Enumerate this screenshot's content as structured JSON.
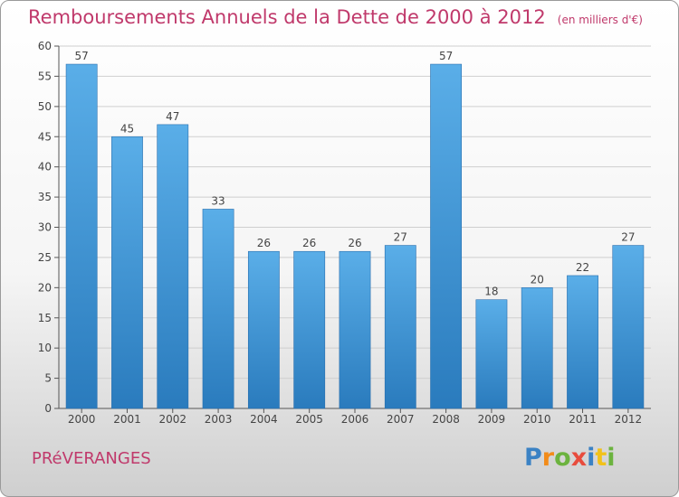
{
  "chart_data": {
    "type": "bar",
    "title": "Remboursements Annuels de la Dette de 2000 à 2012",
    "subtitle": "(en milliers d'€)",
    "categories": [
      "2000",
      "2001",
      "2002",
      "2003",
      "2004",
      "2005",
      "2006",
      "2007",
      "2008",
      "2009",
      "2010",
      "2011",
      "2012"
    ],
    "values": [
      57,
      45,
      47,
      33,
      26,
      26,
      26,
      27,
      57,
      18,
      20,
      22,
      27
    ],
    "ylim": [
      0,
      60
    ],
    "yticks": [
      0,
      5,
      10,
      15,
      20,
      25,
      30,
      35,
      40,
      45,
      50,
      55,
      60
    ],
    "grid": true,
    "legend": "none",
    "colors": {
      "bar_top": "#5aaee8",
      "bar_bottom": "#2a7bbd",
      "grid": "#cfcfcf",
      "title": "#c0396b"
    }
  },
  "footer": {
    "commune": "PRéVERANGES",
    "logo_letters": [
      "P",
      "r",
      "o",
      "x",
      "i",
      "t",
      "i"
    ],
    "logo_colors": [
      "#3b82c4",
      "#f28c1a",
      "#6cb33f",
      "#e84c3d",
      "#3b82c4",
      "#f2c21a",
      "#6cb33f"
    ]
  }
}
